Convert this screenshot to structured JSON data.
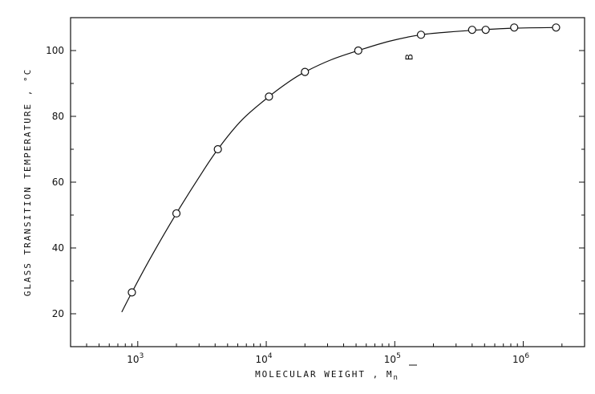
{
  "chart_data": {
    "type": "scatter",
    "title": "",
    "xlabel": "MOLECULAR WEIGHT , M",
    "xlabel_sub": "n",
    "ylabel": "GLASS TRANSITION TEMPERATURE , °C",
    "xscale": "log",
    "xlim": [
      300,
      3000000
    ],
    "ylim": [
      10,
      110
    ],
    "grid": false,
    "legend": "none",
    "x_ticks": [
      {
        "value": 1000,
        "base": "10",
        "exp": "3"
      },
      {
        "value": 10000,
        "base": "10",
        "exp": "4"
      },
      {
        "value": 100000,
        "base": "10",
        "exp": "5"
      },
      {
        "value": 1000000,
        "base": "10",
        "exp": "6"
      }
    ],
    "y_ticks": [
      {
        "value": 20,
        "label": "20"
      },
      {
        "value": 40,
        "label": "40"
      },
      {
        "value": 60,
        "label": "60"
      },
      {
        "value": 80,
        "label": "80"
      },
      {
        "value": 100,
        "label": "100"
      }
    ],
    "series": [
      {
        "marker": "open-circle",
        "x": [
          900,
          2000,
          4200,
          10500,
          20000,
          52000,
          160000,
          400000,
          510000,
          850000,
          1800000
        ],
        "y": [
          26.5,
          50.5,
          70,
          86,
          93.5,
          100,
          104.8,
          106.3,
          106.3,
          107,
          107
        ]
      }
    ],
    "curve": {
      "x": [
        750,
        900,
        1300,
        2000,
        3000,
        4200,
        6500,
        10500,
        15000,
        20000,
        32000,
        52000,
        90000,
        160000,
        300000,
        510000,
        850000,
        1800000
      ],
      "y": [
        20.5,
        26.5,
        38,
        50.5,
        61.5,
        70,
        79,
        86,
        90.5,
        93.5,
        97.2,
        100,
        102.8,
        104.8,
        105.8,
        106.4,
        106.8,
        107
      ]
    },
    "annotation": {
      "text": "B",
      "x": 130000,
      "y": 98
    }
  }
}
